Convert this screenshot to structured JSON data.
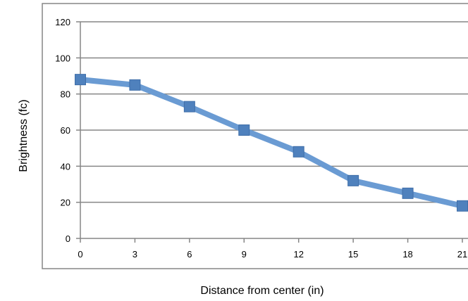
{
  "chart_data": {
    "type": "line",
    "title": "",
    "xlabel": "Distance from center (in)",
    "ylabel": "Brightness (fc)",
    "x": [
      0,
      3,
      6,
      9,
      12,
      15,
      18,
      21
    ],
    "x_tick_labels": [
      "0",
      "3",
      "6",
      "9",
      "12",
      "15",
      "18",
      "21"
    ],
    "ylim": [
      0,
      120
    ],
    "y_ticks": [
      0,
      20,
      40,
      60,
      80,
      100,
      120
    ],
    "grid": true,
    "legend": "none",
    "series": [
      {
        "values": [
          88,
          85,
          73,
          60,
          48,
          32,
          25,
          18
        ]
      }
    ],
    "colors": {
      "line": "#6a9bd3",
      "marker": "#4f81bd",
      "grid": "#868686",
      "frame": "#868686"
    }
  }
}
